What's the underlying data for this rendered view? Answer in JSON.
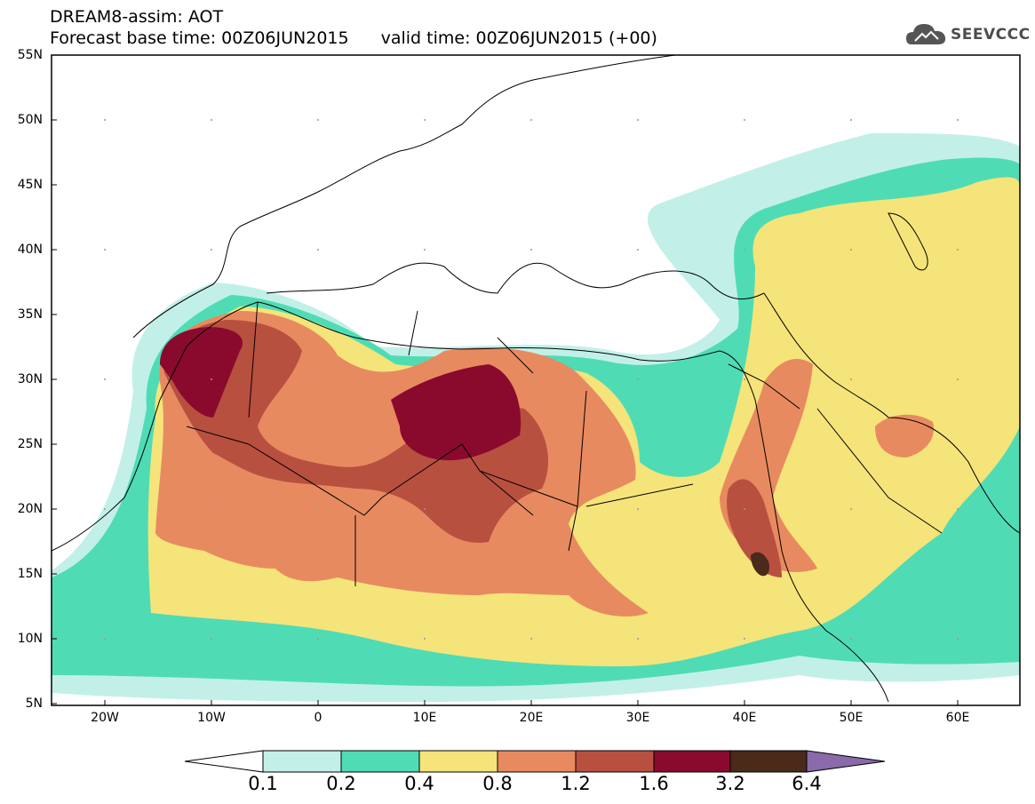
{
  "header": {
    "line1": "DREAM8-assim: AOT",
    "base_time": "Forecast base time: 00Z06JUN2015",
    "valid_time": "valid time: 00Z06JUN2015 (+00)",
    "logo_text": "SEEVCCC"
  },
  "axes": {
    "lat_labels": [
      "55N",
      "50N",
      "45N",
      "40N",
      "35N",
      "30N",
      "25N",
      "20N",
      "15N",
      "10N",
      "5N"
    ],
    "lon_labels": [
      "20W",
      "10W",
      "0",
      "10E",
      "20E",
      "30E",
      "40E",
      "50E",
      "60E"
    ]
  },
  "legend": {
    "levels": [
      "0.1",
      "0.2",
      "0.4",
      "0.8",
      "1.2",
      "1.6",
      "3.2",
      "6.4"
    ],
    "colors": [
      "#ffffff",
      "#c2f0e8",
      "#4fdcb4",
      "#f5e47a",
      "#e88a60",
      "#b85040",
      "#8a0a2e",
      "#4a2a1a",
      "#8a6aaa"
    ]
  },
  "map": {
    "field": "AOT",
    "lon_range": [
      -25,
      65
    ],
    "lat_range": [
      5,
      55
    ]
  }
}
